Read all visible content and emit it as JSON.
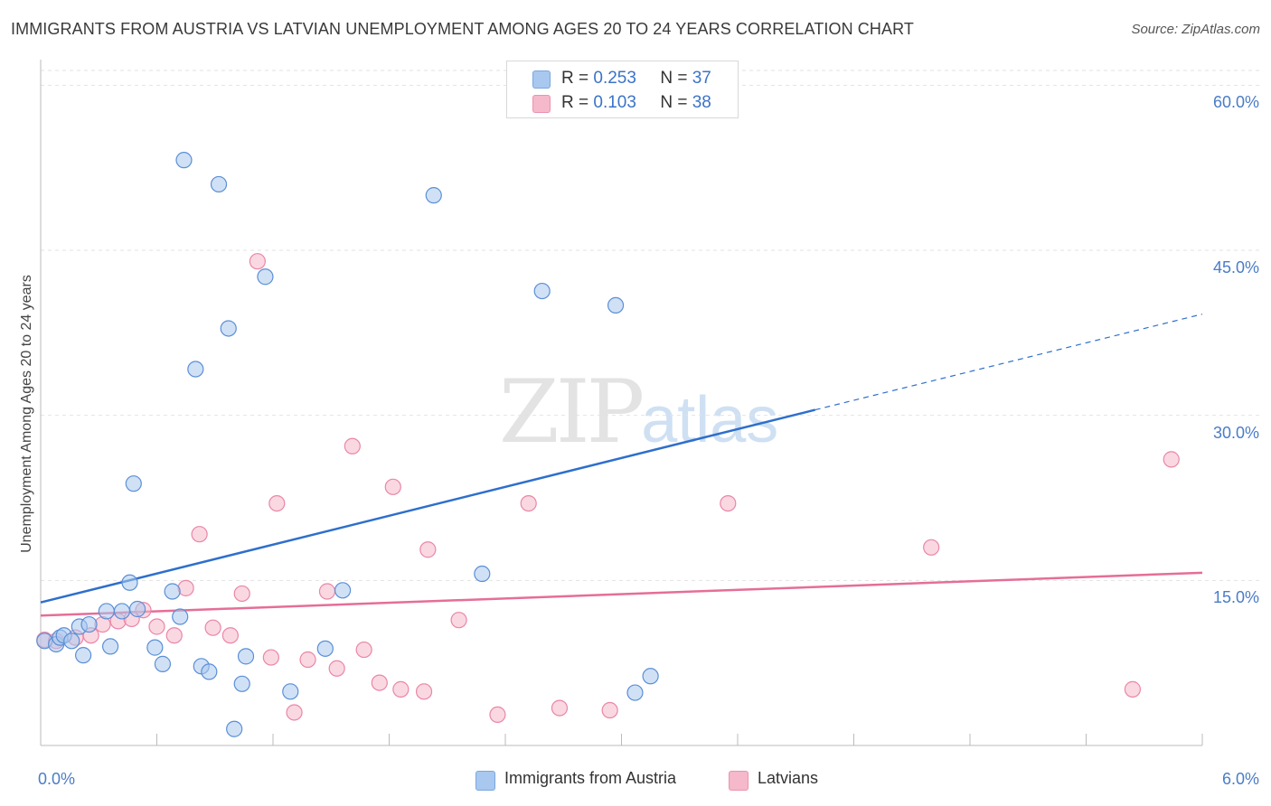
{
  "header": {
    "title": "IMMIGRANTS FROM AUSTRIA VS LATVIAN UNEMPLOYMENT AMONG AGES 20 TO 24 YEARS CORRELATION CHART",
    "source": "Source: ZipAtlas.com"
  },
  "watermark": {
    "zip": "ZIP",
    "atlas": "atlas"
  },
  "legend": {
    "rows": [
      {
        "r_label": "R =",
        "r_value": "0.253",
        "n_label": "N =",
        "n_value": "37",
        "color": "#a9c8ef"
      },
      {
        "r_label": "R =",
        "r_value": "0.103",
        "n_label": "N =",
        "n_value": "38",
        "color": "#f6b8cb"
      }
    ],
    "bottom": [
      {
        "label": "Immigrants from Austria",
        "color": "#a9c8ef"
      },
      {
        "label": "Latvians",
        "color": "#f6b8cb"
      }
    ]
  },
  "chart_data": {
    "type": "scatter",
    "title": "IMMIGRANTS FROM AUSTRIA VS LATVIAN UNEMPLOYMENT AMONG AGES 20 TO 24 YEARS CORRELATION CHART",
    "xlabel": "",
    "ylabel": "Unemployment Among Ages 20 to 24 years",
    "xlim": [
      0,
      6.0
    ],
    "ylim": [
      0,
      62
    ],
    "x_tick_labels": [
      "0.0%",
      "6.0%"
    ],
    "y_ticks": [
      15,
      30,
      45,
      60
    ],
    "y_tick_labels": [
      "15.0%",
      "30.0%",
      "45.0%",
      "60.0%"
    ],
    "series": [
      {
        "name": "Immigrants from Austria",
        "color": "#5b8fd6",
        "fill": "#a9c8ef",
        "trend_color": "#2e6fcc",
        "trend": {
          "x0": 0.0,
          "y0": 13.0,
          "x1": 4.0,
          "y1": 30.5,
          "x_ext": 6.0,
          "y_ext": 39.2
        },
        "points": [
          [
            0.02,
            9.5
          ],
          [
            0.08,
            9.2
          ],
          [
            0.1,
            9.8
          ],
          [
            0.12,
            10.0
          ],
          [
            0.2,
            10.8
          ],
          [
            0.22,
            8.2
          ],
          [
            0.25,
            11.0
          ],
          [
            0.34,
            12.2
          ],
          [
            0.36,
            9.0
          ],
          [
            0.42,
            12.2
          ],
          [
            0.46,
            14.8
          ],
          [
            0.48,
            23.8
          ],
          [
            0.5,
            12.4
          ],
          [
            0.59,
            8.9
          ],
          [
            0.63,
            7.4
          ],
          [
            0.68,
            14.0
          ],
          [
            0.72,
            11.7
          ],
          [
            0.74,
            53.2
          ],
          [
            0.8,
            34.2
          ],
          [
            0.83,
            7.2
          ],
          [
            0.87,
            6.7
          ],
          [
            0.92,
            51.0
          ],
          [
            0.97,
            37.9
          ],
          [
            1.0,
            1.5
          ],
          [
            1.04,
            5.6
          ],
          [
            1.06,
            8.1
          ],
          [
            1.16,
            42.6
          ],
          [
            1.29,
            4.9
          ],
          [
            1.47,
            8.8
          ],
          [
            1.56,
            14.1
          ],
          [
            2.03,
            50.0
          ],
          [
            2.28,
            15.6
          ],
          [
            2.59,
            41.3
          ],
          [
            2.97,
            40.0
          ],
          [
            3.07,
            4.8
          ],
          [
            3.15,
            6.3
          ],
          [
            0.16,
            9.5
          ]
        ]
      },
      {
        "name": "Latvians",
        "color": "#ea86a6",
        "fill": "#f6b8cb",
        "trend_color": "#e56e97",
        "trend": {
          "x0": 0.0,
          "y0": 11.8,
          "x1": 6.0,
          "y1": 15.7
        },
        "points": [
          [
            0.02,
            9.6
          ],
          [
            0.08,
            9.5
          ],
          [
            0.18,
            9.8
          ],
          [
            0.26,
            10.0
          ],
          [
            0.32,
            11.0
          ],
          [
            0.4,
            11.3
          ],
          [
            0.47,
            11.5
          ],
          [
            0.53,
            12.3
          ],
          [
            0.6,
            10.8
          ],
          [
            0.69,
            10.0
          ],
          [
            0.75,
            14.3
          ],
          [
            0.82,
            19.2
          ],
          [
            0.89,
            10.7
          ],
          [
            0.98,
            10.0
          ],
          [
            1.04,
            13.8
          ],
          [
            1.12,
            44.0
          ],
          [
            1.19,
            8.0
          ],
          [
            1.22,
            22.0
          ],
          [
            1.31,
            3.0
          ],
          [
            1.38,
            7.8
          ],
          [
            1.48,
            14.0
          ],
          [
            1.53,
            7.0
          ],
          [
            1.61,
            27.2
          ],
          [
            1.67,
            8.7
          ],
          [
            1.75,
            5.7
          ],
          [
            1.82,
            23.5
          ],
          [
            1.86,
            5.1
          ],
          [
            1.98,
            4.9
          ],
          [
            2.0,
            17.8
          ],
          [
            2.16,
            11.4
          ],
          [
            2.36,
            2.8
          ],
          [
            2.52,
            22.0
          ],
          [
            2.68,
            3.4
          ],
          [
            2.94,
            3.2
          ],
          [
            3.55,
            22.0
          ],
          [
            4.6,
            18.0
          ],
          [
            5.84,
            26.0
          ],
          [
            5.64,
            5.1
          ]
        ]
      }
    ]
  }
}
